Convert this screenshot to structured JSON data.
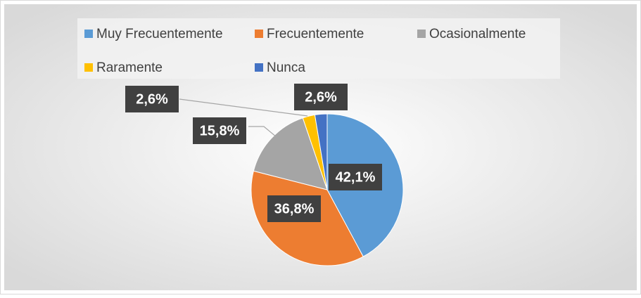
{
  "chart_data": {
    "type": "pie",
    "categories": [
      "Muy Frecuentemente",
      "Frecuentemente",
      "Ocasionalmente",
      "Raramente",
      "Nunca"
    ],
    "values": [
      42.1,
      36.8,
      15.8,
      2.6,
      2.6
    ],
    "value_labels": [
      "42,1%",
      "36,8%",
      "15,8%",
      "2,6%",
      "2,6%"
    ],
    "colors": [
      "#5b9bd5",
      "#ed7d31",
      "#a5a5a5",
      "#ffc000",
      "#4472c4"
    ],
    "legend": "top"
  }
}
